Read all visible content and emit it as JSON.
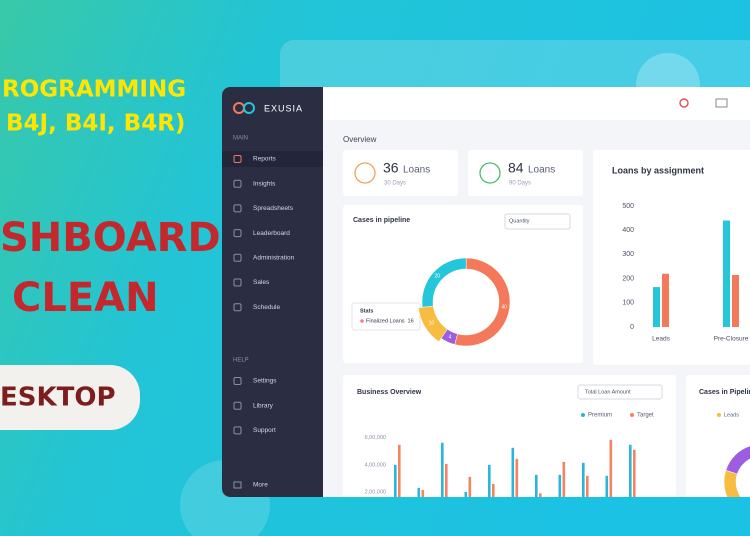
{
  "banner": {
    "lines": [
      "ROGRAMMING",
      "B4J, B4I, B4R)",
      "SHBOARD",
      "CLEAN"
    ],
    "button": "ESKTOP"
  },
  "sidebar": {
    "brand": "EXUSIA",
    "sections": [
      {
        "label": "MAIN",
        "items": [
          "Reports",
          "Insights",
          "Spreadsheets",
          "Leaderboard",
          "Administration",
          "Sales",
          "Schedule"
        ]
      },
      {
        "label": "HELP",
        "items": [
          "Settings",
          "Library",
          "Support"
        ]
      }
    ],
    "footer": "More"
  },
  "overview": {
    "title": "Overview",
    "cards": [
      {
        "count": 36,
        "unit": "Loans",
        "period": "30 Days",
        "color": "#f4a04a"
      },
      {
        "count": 84,
        "unit": "Loans",
        "period": "90 Days",
        "color": "#4cbb6c"
      }
    ]
  },
  "chart_data": [
    {
      "type": "donut",
      "title": "Cases in pipeline",
      "dropdown": "Quantity",
      "values": [
        20,
        40,
        4,
        10
      ],
      "colors": [
        "#26c6da",
        "#f4795b",
        "#9c5de0",
        "#f6bd41"
      ],
      "tooltip": {
        "title": "Stats",
        "label": "Finalized Loans",
        "value": 16
      }
    },
    {
      "type": "bar",
      "title": "Loans by assignment",
      "categories": [
        "Leads",
        "Pre-Closure"
      ],
      "series": [
        {
          "color": "#26c6da",
          "values": [
            165,
            440
          ]
        },
        {
          "color": "#f4795b",
          "values": [
            220,
            215
          ]
        }
      ],
      "ylim": [
        0,
        500
      ],
      "yticks": [
        0,
        100,
        200,
        300,
        400,
        500
      ]
    },
    {
      "type": "bar",
      "title": "Business Overview",
      "dropdown": "Total Loan Amount",
      "series": [
        {
          "name": "Premium",
          "color": "#29b6d8",
          "values": [
            400000,
            230000,
            563000,
            200000,
            400000,
            526000,
            326000,
            326000,
            415000,
            319000,
            548000
          ]
        },
        {
          "name": "Target",
          "color": "#f4845f",
          "values": [
            548000,
            215000,
            407000,
            311000,
            259000,
            444000,
            190000,
            422000,
            319000,
            585000,
            511000
          ]
        }
      ],
      "ylim": [
        0,
        650000
      ],
      "yticks": [
        {
          "value": 200000,
          "label": "2,00,000"
        },
        {
          "value": 400000,
          "label": "4,00,000"
        },
        {
          "value": 600000,
          "label": "6,00,000"
        }
      ]
    },
    {
      "type": "donut",
      "title": "Cases in Pipeline",
      "legend": [
        "Leads"
      ],
      "values": [
        30,
        15,
        55
      ],
      "colors": [
        "#f6bd41",
        "#9c5de0",
        "#ffffff"
      ]
    }
  ]
}
